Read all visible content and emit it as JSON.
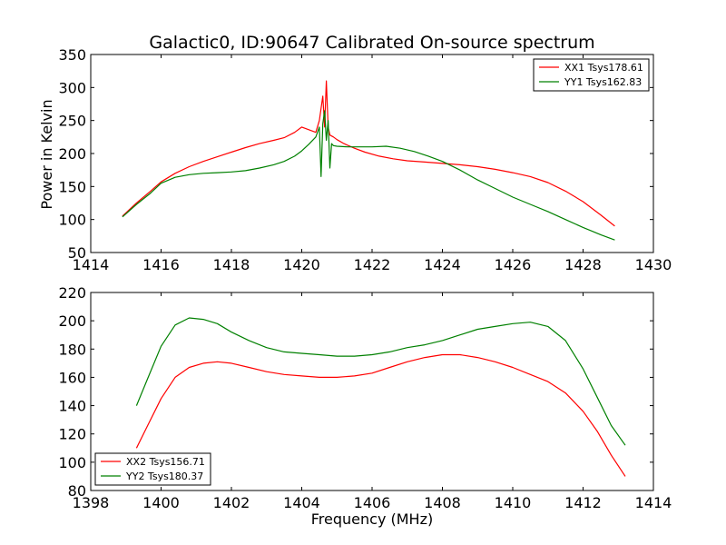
{
  "chart_data": [
    {
      "type": "line",
      "title": "Galactic0, ID:90647 Calibrated On-source spectrum",
      "ylabel": "Power in Kelvin",
      "xlabel": "",
      "xlim": [
        1414,
        1430
      ],
      "ylim": [
        50,
        350
      ],
      "xticks": [
        1414,
        1416,
        1418,
        1420,
        1422,
        1424,
        1426,
        1428,
        1430
      ],
      "yticks": [
        50,
        100,
        150,
        200,
        250,
        300,
        350
      ],
      "legend": "top-right",
      "series": [
        {
          "name": "XX1 Tsys178.61",
          "color": "#ff0000",
          "x": [
            1414.9,
            1415.3,
            1415.7,
            1416.0,
            1416.4,
            1416.8,
            1417.2,
            1417.6,
            1418.0,
            1418.4,
            1418.8,
            1419.2,
            1419.5,
            1419.8,
            1420.0,
            1420.2,
            1420.4,
            1420.5,
            1420.6,
            1420.65,
            1420.7,
            1420.75,
            1420.8,
            1420.9,
            1421.0,
            1421.2,
            1421.5,
            1421.8,
            1422.2,
            1422.6,
            1423.0,
            1423.5,
            1424.0,
            1424.5,
            1425.0,
            1425.5,
            1426.0,
            1426.5,
            1427.0,
            1427.5,
            1428.0,
            1428.5,
            1428.9
          ],
          "y": [
            105,
            125,
            143,
            157,
            170,
            180,
            188,
            195,
            202,
            209,
            215,
            220,
            224,
            232,
            240,
            236,
            232,
            250,
            287,
            240,
            310,
            240,
            228,
            225,
            221,
            215,
            208,
            202,
            196,
            192,
            189,
            187,
            185,
            183,
            180,
            176,
            171,
            165,
            156,
            143,
            127,
            107,
            90
          ]
        },
        {
          "name": "YY1 Tsys162.83",
          "color": "#008000",
          "x": [
            1414.9,
            1415.3,
            1415.7,
            1416.0,
            1416.4,
            1416.8,
            1417.2,
            1417.6,
            1418.0,
            1418.4,
            1418.8,
            1419.2,
            1419.5,
            1419.8,
            1420.0,
            1420.2,
            1420.4,
            1420.5,
            1420.55,
            1420.6,
            1420.65,
            1420.7,
            1420.75,
            1420.8,
            1420.85,
            1420.9,
            1421.0,
            1421.3,
            1421.6,
            1422.0,
            1422.4,
            1422.8,
            1423.2,
            1423.6,
            1424.0,
            1424.5,
            1425.0,
            1425.5,
            1426.0,
            1426.5,
            1427.0,
            1427.5,
            1428.0,
            1428.5,
            1428.9
          ],
          "y": [
            104,
            123,
            140,
            155,
            164,
            168,
            170,
            171,
            172,
            174,
            178,
            183,
            188,
            196,
            204,
            214,
            225,
            240,
            165,
            245,
            265,
            220,
            250,
            178,
            215,
            212,
            211,
            210,
            210,
            210,
            211,
            208,
            203,
            196,
            188,
            175,
            160,
            147,
            134,
            123,
            112,
            100,
            88,
            77,
            69
          ]
        }
      ]
    },
    {
      "type": "line",
      "title": "",
      "xlabel": "Frequency (MHz)",
      "ylabel": "",
      "xlim": [
        1398,
        1414
      ],
      "ylim": [
        80,
        220
      ],
      "xticks": [
        1398,
        1400,
        1402,
        1404,
        1406,
        1408,
        1410,
        1412,
        1414
      ],
      "yticks": [
        80,
        100,
        120,
        140,
        160,
        180,
        200,
        220
      ],
      "legend": "bottom-left",
      "series": [
        {
          "name": "XX2 Tsys156.71",
          "color": "#ff0000",
          "x": [
            1399.3,
            1399.6,
            1400.0,
            1400.4,
            1400.8,
            1401.2,
            1401.6,
            1402.0,
            1402.5,
            1403.0,
            1403.5,
            1404.0,
            1404.5,
            1405.0,
            1405.5,
            1406.0,
            1406.5,
            1407.0,
            1407.5,
            1408.0,
            1408.5,
            1409.0,
            1409.5,
            1410.0,
            1410.5,
            1411.0,
            1411.5,
            1412.0,
            1412.4,
            1412.8,
            1413.2
          ],
          "y": [
            110,
            125,
            145,
            160,
            167,
            170,
            171,
            170,
            167,
            164,
            162,
            161,
            160,
            160,
            161,
            163,
            167,
            171,
            174,
            176,
            176,
            174,
            171,
            167,
            162,
            157,
            149,
            136,
            122,
            105,
            90
          ]
        },
        {
          "name": "YY2 Tsys180.37",
          "color": "#008000",
          "x": [
            1399.3,
            1399.6,
            1400.0,
            1400.4,
            1400.8,
            1401.2,
            1401.6,
            1402.0,
            1402.5,
            1403.0,
            1403.5,
            1404.0,
            1404.5,
            1405.0,
            1405.5,
            1406.0,
            1406.5,
            1407.0,
            1407.5,
            1408.0,
            1408.5,
            1409.0,
            1409.5,
            1410.0,
            1410.5,
            1411.0,
            1411.5,
            1412.0,
            1412.4,
            1412.8,
            1413.2
          ],
          "y": [
            140,
            158,
            182,
            197,
            202,
            201,
            198,
            192,
            186,
            181,
            178,
            177,
            176,
            175,
            175,
            176,
            178,
            181,
            183,
            186,
            190,
            194,
            196,
            198,
            199,
            196,
            186,
            166,
            146,
            126,
            112
          ]
        }
      ]
    }
  ]
}
